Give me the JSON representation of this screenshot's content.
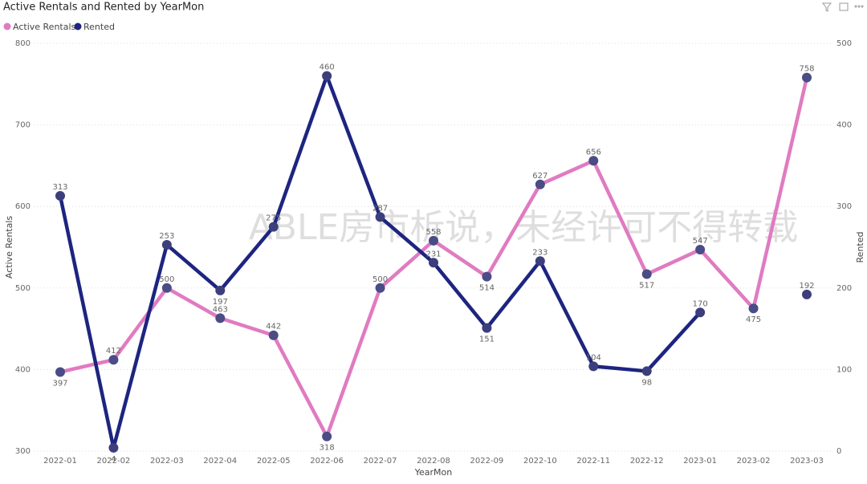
{
  "chart_data": {
    "type": "line",
    "title": "Active Rentals and Rented by YearMon",
    "x_label": "YearMon",
    "y_label": "Active Rentals",
    "y2_label": "Rented",
    "watermark": "ABLE房市析说，未经许可不得转载",
    "categories": [
      "2022-01",
      "2022-02",
      "2022-03",
      "2022-04",
      "2022-05",
      "2022-06",
      "2022-07",
      "2022-08",
      "2022-09",
      "2022-10",
      "2022-11",
      "2022-12",
      "2023-01",
      "2023-02",
      "2023-03"
    ],
    "series": [
      {
        "name": "Active Rentals",
        "color": "#e07bc1",
        "marker_color": "#4a4c86",
        "axis": "y",
        "values": [
          397,
          412,
          500,
          463,
          442,
          318,
          500,
          558,
          514,
          627,
          656,
          517,
          547,
          475,
          758
        ]
      },
      {
        "name": "Rented",
        "color": "#1d2580",
        "marker_color": "#3c3f7c",
        "axis": "y2",
        "values": [
          313,
          4,
          253,
          197,
          275,
          460,
          287,
          231,
          151,
          233,
          104,
          98,
          170,
          null,
          192
        ]
      }
    ],
    "ylim": [
      300,
      800
    ],
    "yticks": [
      300,
      400,
      500,
      600,
      700,
      800
    ],
    "y2lim": [
      0,
      500
    ],
    "y2ticks": [
      0,
      100,
      200,
      300,
      400,
      500
    ],
    "grid": true,
    "legend": "top-left"
  }
}
